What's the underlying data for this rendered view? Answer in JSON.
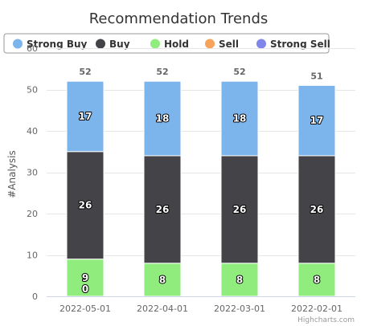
{
  "chart_data": {
    "type": "bar",
    "stacked": true,
    "title": "Recommendation Trends",
    "xlabel": "",
    "ylabel": "#Analysis",
    "ylim": [
      0,
      60
    ],
    "yticks": [
      0,
      10,
      20,
      30,
      40,
      50,
      60
    ],
    "grid": true,
    "legend_placement": "top",
    "categories": [
      "2022-05-01",
      "2022-04-01",
      "2022-03-01",
      "2022-02-01"
    ],
    "series": [
      {
        "name": "Strong Buy",
        "color": "#7cb5ec",
        "values": [
          17,
          18,
          18,
          17
        ]
      },
      {
        "name": "Buy",
        "color": "#434348",
        "values": [
          26,
          26,
          26,
          26
        ]
      },
      {
        "name": "Hold",
        "color": "#90ed7d",
        "values": [
          9,
          8,
          8,
          8
        ]
      },
      {
        "name": "Sell",
        "color": "#f7a35c",
        "values": [
          0,
          0,
          0,
          0
        ]
      },
      {
        "name": "Strong Sell",
        "color": "#8085e9",
        "values": [
          0,
          0,
          0,
          0
        ]
      }
    ],
    "totals": [
      52,
      52,
      52,
      51
    ],
    "credits": "Highcharts.com"
  }
}
